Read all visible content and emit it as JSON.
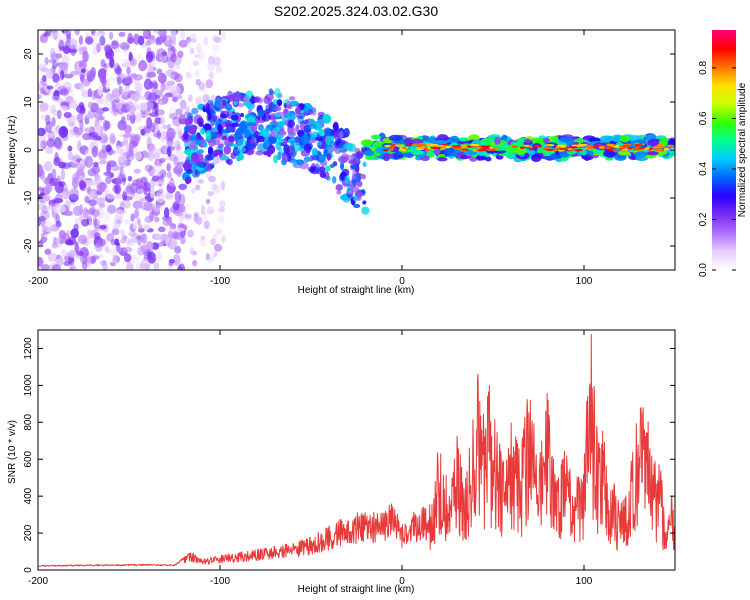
{
  "title": "S202.2025.324.03.02.G30",
  "chart_data": [
    {
      "type": "heatmap",
      "title": "S202.2025.324.03.02.G30",
      "xlabel": "Height of straight line (km)",
      "ylabel": "Frequency (Hz)",
      "xlim": [
        -200,
        150
      ],
      "ylim": [
        -25,
        25
      ],
      "xticks": [
        -200,
        -100,
        0,
        100
      ],
      "xtick_labels": [
        "-200",
        "-100",
        "0",
        "100"
      ],
      "yticks": [
        -20,
        -10,
        0,
        10,
        20
      ],
      "ytick_labels": [
        "-20",
        "-10",
        "0",
        "10",
        "20"
      ],
      "colorbar": {
        "label": "Normalized spectral amplitude",
        "range": [
          0,
          0.95
        ],
        "ticks": [
          0,
          0.2,
          0.4,
          0.6,
          0.8
        ],
        "tick_labels": [
          "0.0",
          "0.2",
          "0.4",
          "0.6",
          "0.8"
        ],
        "colors": [
          "#ffffff",
          "#e6ccff",
          "#b070ff",
          "#7a2cf0",
          "#2a00ff",
          "#0064ff",
          "#00ccff",
          "#00ff8c",
          "#33ff00",
          "#ccff00",
          "#ffe000",
          "#ff7000",
          "#ff0000",
          "#ff0080"
        ]
      },
      "features": {
        "signal_band_hz": [
          -1,
          2
        ],
        "noise_region_km": [
          -200,
          -120
        ],
        "transition_region_km": [
          -120,
          -20
        ],
        "signal_region_km": [
          -20,
          150
        ]
      }
    },
    {
      "type": "line",
      "xlabel": "Height of straight line (km)",
      "ylabel": "SNR (10 * v/v)",
      "xlim": [
        -200,
        150
      ],
      "ylim": [
        0,
        1300
      ],
      "xticks": [
        -200,
        -100,
        0,
        100
      ],
      "xtick_labels": [
        "-200",
        "-100",
        "0",
        "100"
      ],
      "yticks": [
        0,
        200,
        400,
        600,
        800,
        1000,
        1200
      ],
      "ytick_labels": [
        "0",
        "200",
        "400",
        "600",
        "800",
        "1000",
        "1200"
      ],
      "color": "#e83a3a",
      "x": [
        -200,
        -180,
        -160,
        -140,
        -125,
        -116,
        -110,
        -100,
        -90,
        -80,
        -70,
        -60,
        -50,
        -40,
        -30,
        -20,
        -10,
        -5,
        0,
        5,
        10,
        15,
        18,
        20,
        25,
        30,
        35,
        40,
        42,
        45,
        48,
        50,
        52,
        55,
        60,
        65,
        70,
        75,
        80,
        85,
        90,
        95,
        100,
        102,
        104,
        106,
        108,
        110,
        115,
        120,
        125,
        128,
        130,
        132,
        135,
        138,
        140,
        142,
        145,
        148,
        150
      ],
      "y": [
        25,
        28,
        30,
        32,
        30,
        100,
        60,
        80,
        95,
        110,
        130,
        150,
        180,
        240,
        300,
        320,
        320,
        380,
        250,
        300,
        350,
        340,
        520,
        750,
        480,
        750,
        520,
        900,
        1100,
        850,
        1050,
        700,
        950,
        620,
        900,
        620,
        1050,
        560,
        980,
        500,
        700,
        480,
        600,
        1150,
        1280,
        900,
        720,
        800,
        520,
        350,
        500,
        780,
        920,
        880,
        900,
        650,
        560,
        600,
        200,
        420,
        320
      ]
    }
  ]
}
